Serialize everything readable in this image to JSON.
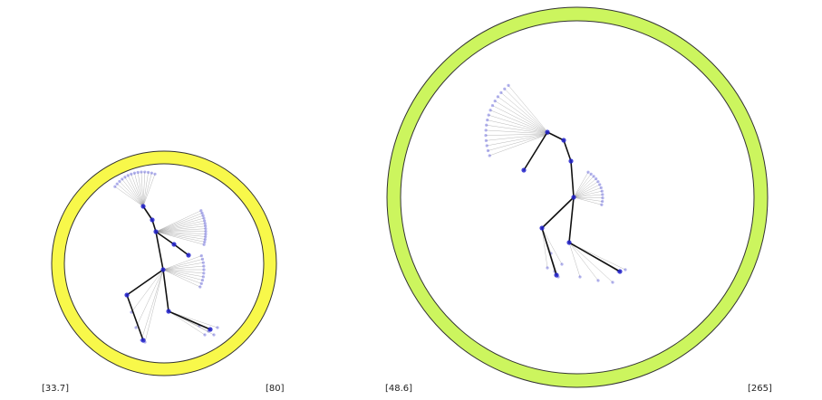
{
  "colors": {
    "background": "#ffffff",
    "ring_outline": "#333333",
    "fan_lines": "#7f7f7f",
    "skeleton": "#111111",
    "joint": "#2222cc"
  },
  "panels": [
    {
      "id": "left",
      "ring_color": "#f8f84a",
      "label_left": "[33.7]",
      "label_right": "[80]"
    },
    {
      "id": "right",
      "ring_color": "#ccf55e",
      "label_left": "[48.6]",
      "label_right": "[265]"
    }
  ]
}
